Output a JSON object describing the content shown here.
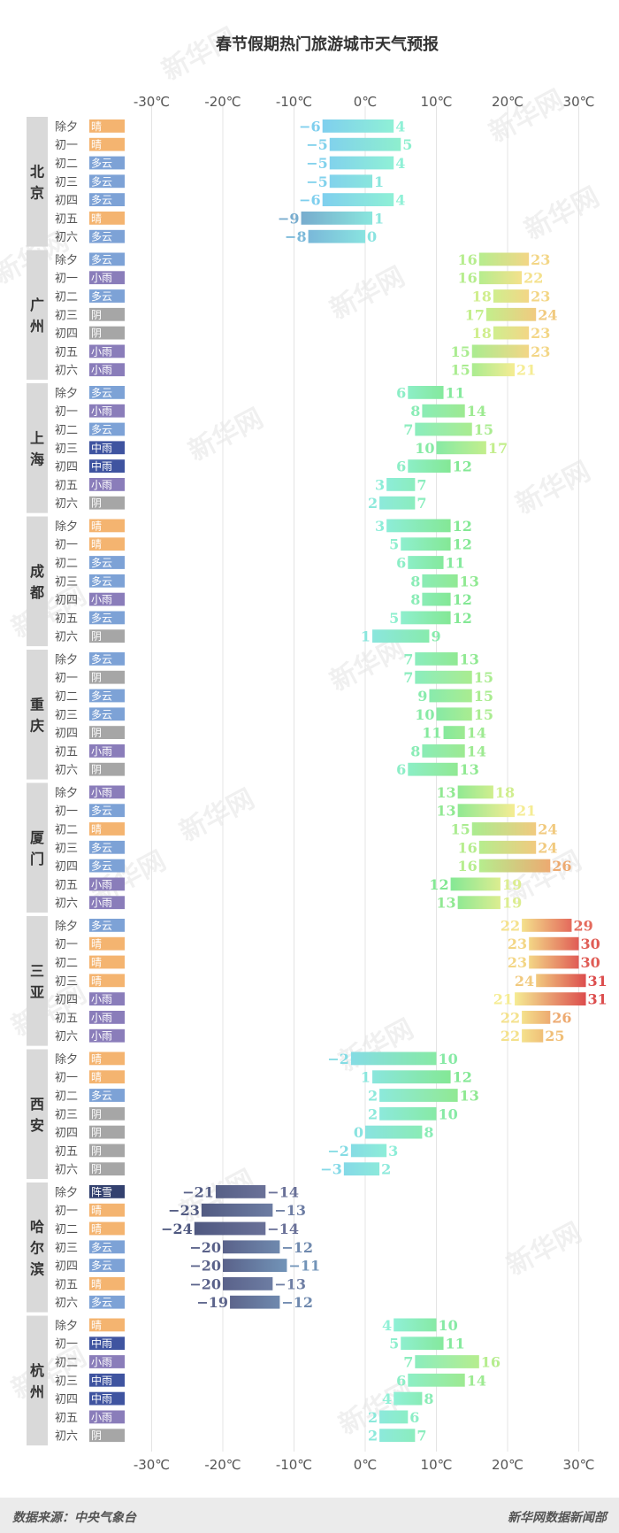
{
  "chart_data": {
    "type": "bar",
    "title": "春节假期热门旅游城市天气预报",
    "x_ticks": [
      "-30℃",
      "-20℃",
      "-10℃",
      "0℃",
      "10℃",
      "20℃",
      "30℃"
    ],
    "x_tick_values": [
      -30,
      -20,
      -10,
      0,
      10,
      20,
      30
    ],
    "xlim": [
      -30,
      30
    ],
    "days": [
      "除夕",
      "初一",
      "初二",
      "初三",
      "初四",
      "初五",
      "初六"
    ],
    "weather_colors": {
      "晴": "#f4b470",
      "多云": "#7da2d6",
      "小雨": "#8a7dba",
      "中雨": "#3f54a0",
      "阴": "#a6a6a6",
      "阵雪": "#33416f"
    },
    "gradient_stops": [
      {
        "t": -24,
        "color": "#4f5880"
      },
      {
        "t": -14,
        "color": "#6a7198"
      },
      {
        "t": -6,
        "color": "#7fcfee"
      },
      {
        "t": 4,
        "color": "#8ff0d6"
      },
      {
        "t": 12,
        "color": "#84e895"
      },
      {
        "t": 17,
        "color": "#c3ee8c"
      },
      {
        "t": 21,
        "color": "#f5ec93"
      },
      {
        "t": 25,
        "color": "#f0bf78"
      },
      {
        "t": 29,
        "color": "#e46a5c"
      },
      {
        "t": 31,
        "color": "#dc4d4d"
      }
    ],
    "cities": [
      {
        "name": "北京",
        "days": [
          {
            "weather": "晴",
            "low": -6,
            "high": 4
          },
          {
            "weather": "晴",
            "low": -5,
            "high": 5
          },
          {
            "weather": "多云",
            "low": -5,
            "high": 4
          },
          {
            "weather": "多云",
            "low": -5,
            "high": 1
          },
          {
            "weather": "多云",
            "low": -6,
            "high": 4
          },
          {
            "weather": "晴",
            "low": -9,
            "high": 1
          },
          {
            "weather": "多云",
            "low": -8,
            "high": 0
          }
        ]
      },
      {
        "name": "广州",
        "days": [
          {
            "weather": "多云",
            "low": 16,
            "high": 23
          },
          {
            "weather": "小雨",
            "low": 16,
            "high": 22
          },
          {
            "weather": "多云",
            "low": 18,
            "high": 23
          },
          {
            "weather": "阴",
            "low": 17,
            "high": 24
          },
          {
            "weather": "阴",
            "low": 18,
            "high": 23
          },
          {
            "weather": "小雨",
            "low": 15,
            "high": 23
          },
          {
            "weather": "小雨",
            "low": 15,
            "high": 21
          }
        ]
      },
      {
        "name": "上海",
        "days": [
          {
            "weather": "多云",
            "low": 6,
            "high": 11
          },
          {
            "weather": "小雨",
            "low": 8,
            "high": 14
          },
          {
            "weather": "多云",
            "low": 7,
            "high": 15
          },
          {
            "weather": "中雨",
            "low": 10,
            "high": 17
          },
          {
            "weather": "中雨",
            "low": 6,
            "high": 12
          },
          {
            "weather": "小雨",
            "low": 3,
            "high": 7
          },
          {
            "weather": "阴",
            "low": 2,
            "high": 7
          }
        ]
      },
      {
        "name": "成都",
        "days": [
          {
            "weather": "晴",
            "low": 3,
            "high": 12
          },
          {
            "weather": "晴",
            "low": 5,
            "high": 12
          },
          {
            "weather": "多云",
            "low": 6,
            "high": 11
          },
          {
            "weather": "多云",
            "low": 8,
            "high": 13
          },
          {
            "weather": "小雨",
            "low": 8,
            "high": 12
          },
          {
            "weather": "多云",
            "low": 5,
            "high": 12
          },
          {
            "weather": "阴",
            "low": 1,
            "high": 9
          }
        ]
      },
      {
        "name": "重庆",
        "days": [
          {
            "weather": "多云",
            "low": 7,
            "high": 13
          },
          {
            "weather": "阴",
            "low": 7,
            "high": 15
          },
          {
            "weather": "多云",
            "low": 9,
            "high": 15
          },
          {
            "weather": "多云",
            "low": 10,
            "high": 15
          },
          {
            "weather": "阴",
            "low": 11,
            "high": 14
          },
          {
            "weather": "小雨",
            "low": 8,
            "high": 14
          },
          {
            "weather": "阴",
            "low": 6,
            "high": 13
          }
        ]
      },
      {
        "name": "厦门",
        "days": [
          {
            "weather": "小雨",
            "low": 13,
            "high": 18
          },
          {
            "weather": "多云",
            "low": 13,
            "high": 21
          },
          {
            "weather": "晴",
            "low": 15,
            "high": 24
          },
          {
            "weather": "多云",
            "low": 16,
            "high": 24
          },
          {
            "weather": "多云",
            "low": 16,
            "high": 26
          },
          {
            "weather": "小雨",
            "low": 12,
            "high": 19
          },
          {
            "weather": "小雨",
            "low": 13,
            "high": 19
          }
        ]
      },
      {
        "name": "三亚",
        "days": [
          {
            "weather": "多云",
            "low": 22,
            "high": 29
          },
          {
            "weather": "晴",
            "low": 23,
            "high": 30
          },
          {
            "weather": "晴",
            "low": 23,
            "high": 30
          },
          {
            "weather": "晴",
            "low": 24,
            "high": 31
          },
          {
            "weather": "小雨",
            "low": 21,
            "high": 31
          },
          {
            "weather": "小雨",
            "low": 22,
            "high": 26
          },
          {
            "weather": "小雨",
            "low": 22,
            "high": 25
          }
        ]
      },
      {
        "name": "西安",
        "days": [
          {
            "weather": "晴",
            "low": -2,
            "high": 10
          },
          {
            "weather": "晴",
            "low": 1,
            "high": 12
          },
          {
            "weather": "多云",
            "low": 2,
            "high": 13
          },
          {
            "weather": "阴",
            "low": 2,
            "high": 10
          },
          {
            "weather": "阴",
            "low": 0,
            "high": 8
          },
          {
            "weather": "阴",
            "low": -2,
            "high": 3
          },
          {
            "weather": "阴",
            "low": -3,
            "high": 2
          }
        ]
      },
      {
        "name": "哈尔滨",
        "days": [
          {
            "weather": "阵雪",
            "low": -21,
            "high": -14
          },
          {
            "weather": "晴",
            "low": -23,
            "high": -13
          },
          {
            "weather": "晴",
            "low": -24,
            "high": -14
          },
          {
            "weather": "多云",
            "low": -20,
            "high": -12
          },
          {
            "weather": "多云",
            "low": -20,
            "high": -11
          },
          {
            "weather": "晴",
            "low": -20,
            "high": -13
          },
          {
            "weather": "多云",
            "low": -19,
            "high": -12
          }
        ]
      },
      {
        "name": "杭州",
        "days": [
          {
            "weather": "晴",
            "low": 4,
            "high": 10
          },
          {
            "weather": "中雨",
            "low": 5,
            "high": 11
          },
          {
            "weather": "小雨",
            "low": 7,
            "high": 16
          },
          {
            "weather": "中雨",
            "low": 6,
            "high": 14
          },
          {
            "weather": "中雨",
            "low": 4,
            "high": 8
          },
          {
            "weather": "小雨",
            "low": 2,
            "high": 6
          },
          {
            "weather": "阴",
            "low": 2,
            "high": 7
          }
        ]
      }
    ]
  },
  "watermark": {
    "text": "新华网"
  },
  "footer": {
    "source": "数据来源：中央气象台",
    "credit": "新华网数据新闻部"
  }
}
